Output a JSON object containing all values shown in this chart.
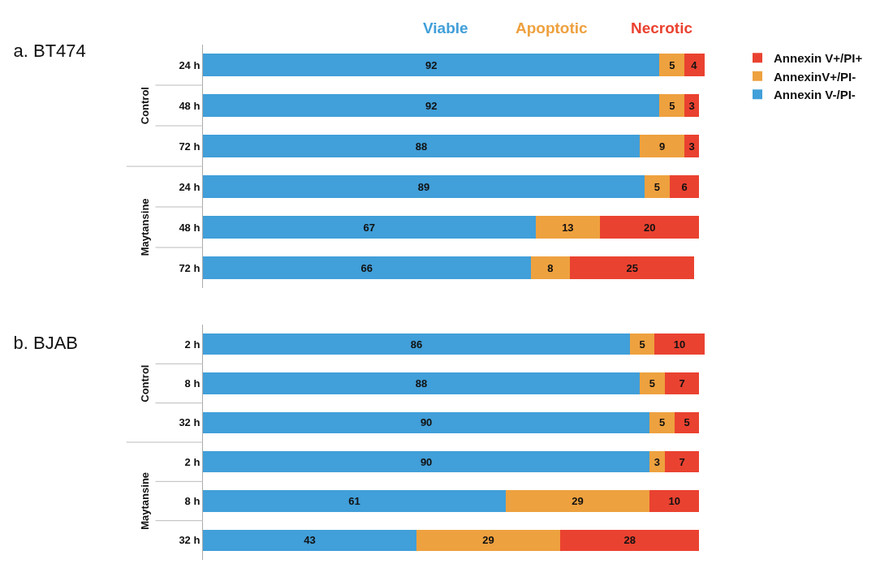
{
  "chart_data": [
    {
      "type": "bar",
      "title": "a. BT474",
      "orientation": "horizontal",
      "stacked": true,
      "data_labels": true,
      "legend": "top right",
      "grid": false,
      "categories": [
        "24 h",
        "48 h",
        "72 h",
        "24 h",
        "48 h",
        "72 h"
      ],
      "annotations": [
        "Viable",
        "Apoptotic",
        "Necrotic",
        "Control",
        "Maytansine"
      ],
      "series": [
        {
          "name": "Annexin V-/PI-",
          "color": "#419fd9",
          "values": [
            92,
            92,
            88,
            89,
            67,
            66
          ]
        },
        {
          "name": "AnnexinV+/PI-",
          "color": "#eea13f",
          "values": [
            5,
            5,
            9,
            5,
            13,
            8
          ]
        },
        {
          "name": "Annexin V+/PI+",
          "color": "#ea4230",
          "values": [
            4,
            3,
            3,
            6,
            20,
            25
          ]
        }
      ]
    },
    {
      "type": "bar",
      "title": "b. BJAB",
      "orientation": "horizontal",
      "stacked": true,
      "data_labels": true,
      "grid": false,
      "categories": [
        "2 h",
        "8 h",
        "32 h",
        "2 h",
        "8 h",
        "32 h"
      ],
      "annotations": [
        "Control",
        "Maytansine"
      ],
      "series": [
        {
          "color": "#419fd9",
          "values": [
            86,
            88,
            90,
            90,
            61,
            43
          ]
        },
        {
          "color": "#eea13f",
          "values": [
            5,
            5,
            5,
            3,
            29,
            29
          ]
        },
        {
          "color": "#ea4230",
          "values": [
            10,
            7,
            5,
            7,
            10,
            28
          ]
        }
      ]
    }
  ]
}
